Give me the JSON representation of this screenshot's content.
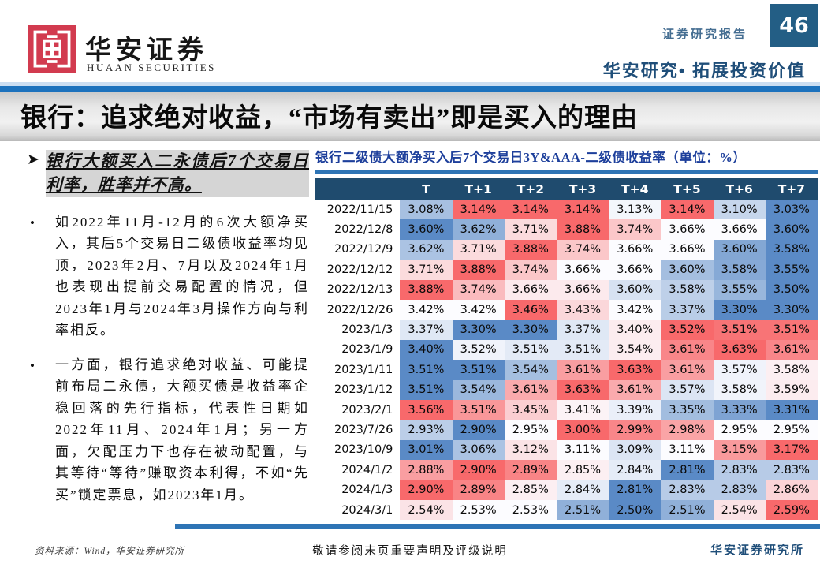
{
  "header": {
    "brand_cn": "华安证券",
    "brand_en": "HUAAN SECURITIES",
    "report_type": "证券研究报告",
    "page_number": "46",
    "slogan": "华安研究• 拓展投资价值"
  },
  "title_bar": {
    "title": "银行：追求绝对收益，“市场有卖出”即是买入的理由"
  },
  "left_panel": {
    "heading": "银行大额买入二永债后7个交易日利率，胜率并不高。",
    "bullets": [
      "如2022年11月-12月的6次大额净买入，其后5个交易日二级债收益率均见顶，2023年2月、7月以及2024年1月也表现出提前交易配置的情况，但2023年1月与2024年3月操作方向与利率相反。",
      "一方面，银行追求绝对收益、可能提前布局二永债，大额买债是收益率企稳回落的先行指标，代表性日期如2022年11月、2024年1月；另一方面，欠配压力下也存在被动配置，与其等待“等待”赚取资本利得，不如“先买”锁定票息，如2023年1月。"
    ]
  },
  "chart_data": {
    "type": "heatmap",
    "title": "银行二级债大额净买入后7个交易日3Y&AAA-二级债收益率（单位：%）",
    "columns": [
      "T",
      "T+1",
      "T+2",
      "T+3",
      "T+4",
      "T+5",
      "T+6",
      "T+7"
    ],
    "unit": "%",
    "rows": [
      {
        "date": "2022/11/15",
        "values": [
          3.08,
          3.14,
          3.14,
          3.14,
          3.13,
          3.14,
          3.1,
          3.03
        ]
      },
      {
        "date": "2022/12/8",
        "values": [
          3.6,
          3.62,
          3.71,
          3.88,
          3.74,
          3.66,
          3.66,
          3.6
        ]
      },
      {
        "date": "2022/12/9",
        "values": [
          3.62,
          3.71,
          3.88,
          3.74,
          3.66,
          3.66,
          3.6,
          3.58
        ]
      },
      {
        "date": "2022/12/12",
        "values": [
          3.71,
          3.88,
          3.74,
          3.66,
          3.66,
          3.6,
          3.58,
          3.55
        ]
      },
      {
        "date": "2022/12/13",
        "values": [
          3.88,
          3.74,
          3.66,
          3.66,
          3.6,
          3.58,
          3.55,
          3.5
        ]
      },
      {
        "date": "2022/12/26",
        "values": [
          3.42,
          3.42,
          3.46,
          3.43,
          3.42,
          3.37,
          3.3,
          3.3
        ]
      },
      {
        "date": "2023/1/3",
        "values": [
          3.37,
          3.3,
          3.3,
          3.37,
          3.4,
          3.52,
          3.51,
          3.51
        ]
      },
      {
        "date": "2023/1/9",
        "values": [
          3.4,
          3.52,
          3.51,
          3.51,
          3.54,
          3.61,
          3.63,
          3.61
        ]
      },
      {
        "date": "2023/1/11",
        "values": [
          3.51,
          3.51,
          3.54,
          3.61,
          3.63,
          3.61,
          3.57,
          3.58
        ]
      },
      {
        "date": "2023/1/12",
        "values": [
          3.51,
          3.54,
          3.61,
          3.63,
          3.61,
          3.57,
          3.58,
          3.59
        ]
      },
      {
        "date": "2023/2/1",
        "values": [
          3.56,
          3.51,
          3.45,
          3.41,
          3.39,
          3.35,
          3.33,
          3.31
        ]
      },
      {
        "date": "2023/7/26",
        "values": [
          2.93,
          2.9,
          2.95,
          3.0,
          2.99,
          2.98,
          2.95,
          2.95
        ]
      },
      {
        "date": "2023/10/9",
        "values": [
          3.01,
          3.06,
          3.12,
          3.11,
          3.09,
          3.11,
          3.15,
          3.17
        ]
      },
      {
        "date": "2024/1/2",
        "values": [
          2.88,
          2.9,
          2.89,
          2.85,
          2.84,
          2.81,
          2.83,
          2.83
        ]
      },
      {
        "date": "2024/1/3",
        "values": [
          2.9,
          2.89,
          2.85,
          2.84,
          2.81,
          2.83,
          2.83,
          2.86
        ]
      },
      {
        "date": "2024/3/1",
        "values": [
          2.54,
          2.53,
          2.53,
          2.51,
          2.5,
          2.51,
          2.54,
          2.59
        ]
      }
    ],
    "layout_hints": {
      "color_scale_per_row": true,
      "midpoint": "row median",
      "min_color": "#5A8AC6",
      "mid_color": "#FCFCFF",
      "max_color": "#F8696B",
      "header_bg": "#1F4B6E"
    }
  },
  "footer": {
    "source": "资料来源：Wind，华安证券研究所",
    "disclaimer": "敬请参阅末页重要声明及评级说明",
    "institute": "华安证券研究所"
  },
  "colors": {
    "accent_bar_blue": "#2E74B5",
    "title_strip_blue": "#1C72BD",
    "navy": "#1F4E79",
    "table_title_blue": "#1D3F9B",
    "logo_red": "#D23B4F",
    "page_box_navy": "#235E85"
  }
}
